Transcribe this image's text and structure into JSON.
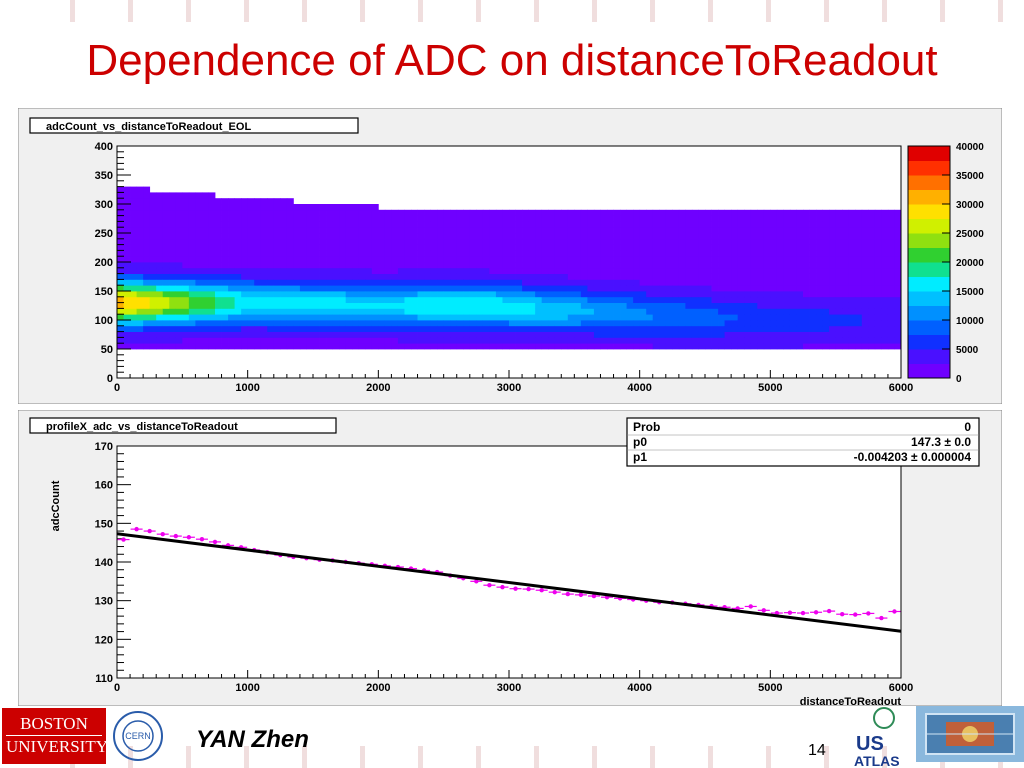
{
  "slide": {
    "title": "Dependence of ADC on distanceToReadout",
    "author": "YAN Zhen",
    "page_number": "14",
    "logos": {
      "bu_line1": "BOSTON",
      "bu_line2": "UNIVERSITY",
      "cern": "CERN",
      "usatlas_line1": "US",
      "usatlas_line2": "ATLAS"
    },
    "colors": {
      "title": "#cc0000",
      "marker": "#ee00ee",
      "fit": "#000000"
    }
  },
  "chart_data": [
    {
      "type": "heatmap",
      "title": "adcCount_vs_distanceToReadout_EOL",
      "xlabel": "",
      "ylabel": "",
      "xlim": [
        0,
        6000
      ],
      "ylim": [
        0,
        400
      ],
      "x_ticks": [
        0,
        1000,
        2000,
        3000,
        4000,
        5000,
        6000
      ],
      "y_ticks": [
        0,
        50,
        100,
        150,
        200,
        250,
        300,
        350,
        400
      ],
      "colorbar": {
        "min": 0,
        "max": 40000,
        "ticks": [
          0,
          5000,
          10000,
          15000,
          20000,
          25000,
          30000,
          35000,
          40000
        ]
      },
      "band_approx": [
        {
          "x": 0,
          "y_low": 50,
          "y_high": 330,
          "peak_y": 130,
          "peak_count": 30000
        },
        {
          "x": 1000,
          "y_low": 50,
          "y_high": 310,
          "peak_y": 130,
          "peak_count": 15000
        },
        {
          "x": 2000,
          "y_low": 50,
          "y_high": 295,
          "peak_y": 125,
          "peak_count": 14000
        },
        {
          "x": 2800,
          "y_low": 50,
          "y_high": 290,
          "peak_y": 125,
          "peak_count": 16000
        },
        {
          "x": 4000,
          "y_low": 50,
          "y_high": 290,
          "peak_y": 110,
          "peak_count": 9000
        },
        {
          "x": 5000,
          "y_low": 50,
          "y_high": 285,
          "peak_y": 100,
          "peak_count": 5000
        },
        {
          "x": 6000,
          "y_low": 50,
          "y_high": 290,
          "peak_y": 100,
          "peak_count": 3000
        }
      ]
    },
    {
      "type": "scatter",
      "title": "profileX_adc_vs_distanceToReadout",
      "xlabel": "distanceToReadout",
      "ylabel": "adcCount",
      "xlim": [
        0,
        6000
      ],
      "ylim": [
        110,
        170
      ],
      "x_ticks": [
        0,
        1000,
        2000,
        3000,
        4000,
        5000,
        6000
      ],
      "y_ticks": [
        110,
        120,
        130,
        140,
        150,
        160,
        170
      ],
      "series": [
        {
          "x": [
            0,
            100,
            200,
            300,
            400,
            500,
            600,
            700,
            800,
            900,
            1000,
            1100,
            1200,
            1300,
            1400,
            1500,
            1600,
            1700,
            1800,
            1900,
            2000,
            2100,
            2200,
            2300,
            2400,
            2500,
            2600,
            2700,
            2800,
            2900,
            3000,
            3100,
            3200,
            3300,
            3400,
            3500,
            3600,
            3700,
            3800,
            3900,
            4000,
            4100,
            4200,
            4300,
            4400,
            4500,
            4600,
            4700,
            4800,
            4900,
            5000,
            5100,
            5200,
            5300,
            5400,
            5500,
            5600,
            5700,
            5800,
            5900
          ],
          "y": [
            145.8,
            148.5,
            148.0,
            147.2,
            146.7,
            146.4,
            145.9,
            145.2,
            144.3,
            143.8,
            143.1,
            142.5,
            141.8,
            141.3,
            141.0,
            140.6,
            140.4,
            140.0,
            139.7,
            139.4,
            139.0,
            138.7,
            138.3,
            137.8,
            137.4,
            136.5,
            135.8,
            135.0,
            134.0,
            133.5,
            133.1,
            133.0,
            132.7,
            132.2,
            131.7,
            131.5,
            131.2,
            130.9,
            130.6,
            130.3,
            130.0,
            129.6,
            129.5,
            129.2,
            128.9,
            128.6,
            128.3,
            128.0,
            128.5,
            127.5,
            126.8,
            126.9,
            126.8,
            127.0,
            127.3,
            126.5,
            126.4,
            126.7,
            125.5,
            127.2
          ]
        }
      ],
      "fit": {
        "p0": 147.3,
        "p1": -0.004203
      },
      "stats": [
        {
          "label": "Prob",
          "value": "0"
        },
        {
          "label": "p0",
          "value": "147.3 ± 0.0"
        },
        {
          "label": "p1",
          "value": "-0.004203 ± 0.000004"
        }
      ]
    }
  ]
}
